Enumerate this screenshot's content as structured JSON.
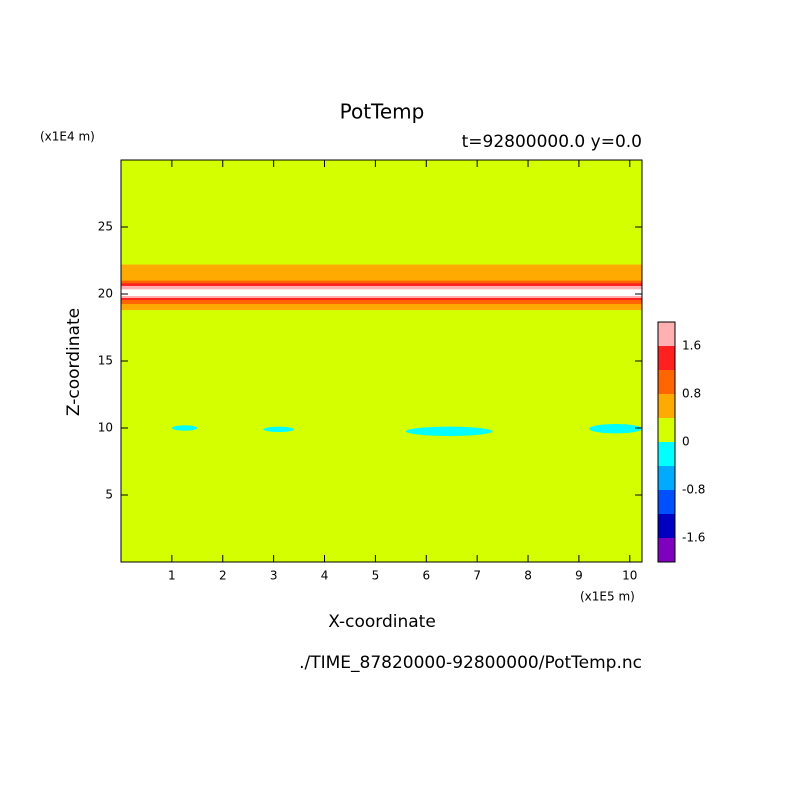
{
  "chart_data": {
    "type": "contour",
    "title": "PotTemp",
    "subtitle": "t=92800000.0 y=0.0",
    "x_label": "X-coordinate",
    "y_label": "Z-coordinate",
    "x_unit": "(x1E5 m)",
    "y_unit": "(x1E4 m)",
    "footer": "./TIME_87820000-92800000/PotTemp.nc",
    "xlim": [
      0,
      10.24
    ],
    "ylim": [
      0,
      30
    ],
    "xticks": [
      1,
      2,
      3,
      4,
      5,
      6,
      7,
      8,
      9,
      10
    ],
    "yticks": [
      5,
      10,
      15,
      20,
      25
    ],
    "background_color": "#d4ff00",
    "colorbar": {
      "levels": [
        -2.0,
        -1.6,
        -1.2,
        -0.8,
        -0.4,
        0,
        0.4,
        0.8,
        1.2,
        1.6,
        2.0
      ],
      "colors": [
        "#8000c0",
        "#0000c0",
        "#0050ff",
        "#00aaff",
        "#00ffff",
        "#d4ff00",
        "#ffaa00",
        "#ff6600",
        "#ff2020",
        "#ffb0b0"
      ],
      "ticks": [
        -1.6,
        -0.8,
        0,
        0.8,
        1.6
      ]
    },
    "regions": [
      {
        "x": [
          0,
          10.24
        ],
        "z": [
          18.8,
          22.2
        ],
        "color": "#ffaa00"
      },
      {
        "x": [
          0,
          10.24
        ],
        "z": [
          19.25,
          21.0
        ],
        "color": "#ff6600"
      },
      {
        "x": [
          0,
          10.24
        ],
        "z": [
          19.55,
          20.8
        ],
        "color": "#ff2020"
      },
      {
        "x": [
          0,
          10.24
        ],
        "z": [
          19.7,
          20.6
        ],
        "color": "#ffb0b0"
      },
      {
        "x": [
          0,
          10.24
        ],
        "z": [
          19.85,
          20.35
        ],
        "color": "#ffffff"
      },
      {
        "x": [
          1.0,
          1.5
        ],
        "z": [
          9.8,
          10.2
        ],
        "color": "#00ffff"
      },
      {
        "x": [
          2.8,
          3.4
        ],
        "z": [
          9.7,
          10.1
        ],
        "color": "#00ffff"
      },
      {
        "x": [
          5.6,
          7.3
        ],
        "z": [
          9.4,
          10.1
        ],
        "color": "#00ffff"
      },
      {
        "x": [
          9.2,
          10.24
        ],
        "z": [
          9.6,
          10.3
        ],
        "color": "#00ffff"
      }
    ]
  }
}
